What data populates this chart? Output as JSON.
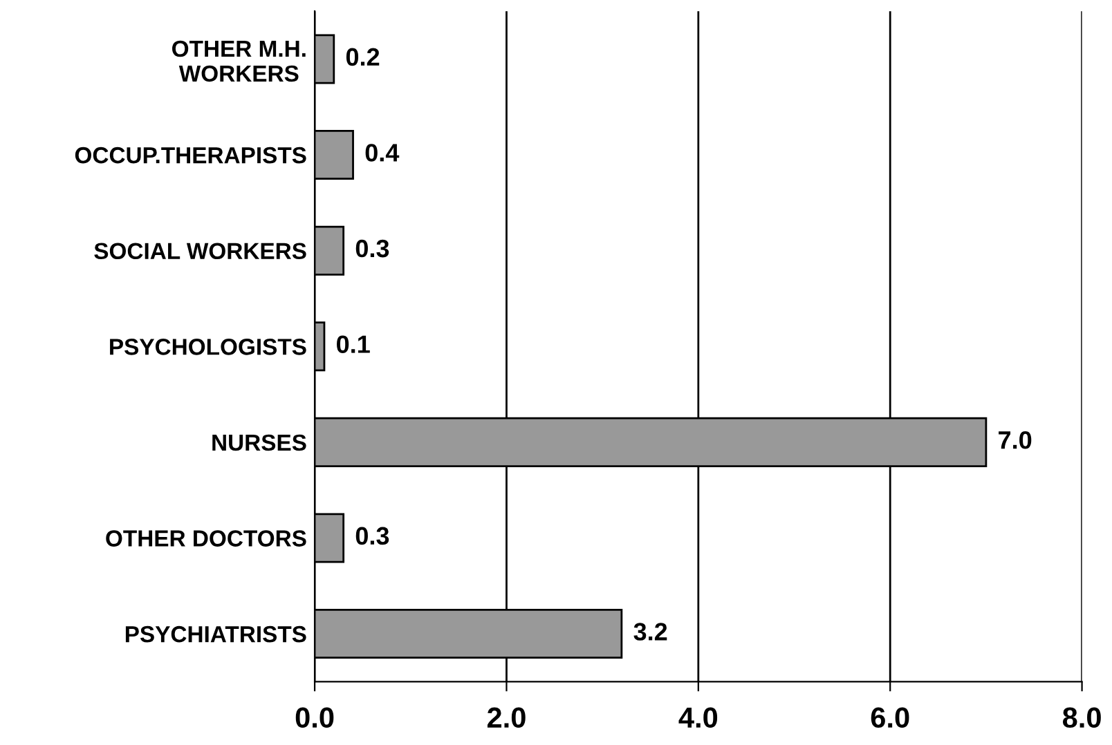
{
  "chart_data": {
    "type": "bar",
    "orientation": "horizontal",
    "categories": [
      "OTHER M.H.\nWORKERS",
      "OCCUP.THERAPISTS",
      "SOCIAL WORKERS",
      "PSYCHOLOGISTS",
      "NURSES",
      "OTHER DOCTORS",
      "PSYCHIATRISTS"
    ],
    "values": [
      0.2,
      0.4,
      0.3,
      0.1,
      7.0,
      0.3,
      3.2
    ],
    "value_labels": [
      "0.2",
      "0.4",
      "0.3",
      "0.1",
      "7.0",
      "0.3",
      "3.2"
    ],
    "color": "#999999",
    "xlim": [
      0,
      8
    ],
    "xticks": [
      {
        "value": 0,
        "label": "0.0"
      },
      {
        "value": 2,
        "label": "2.0"
      },
      {
        "value": 4,
        "label": "4.0"
      },
      {
        "value": 6,
        "label": "6.0"
      },
      {
        "value": 8,
        "label": "8.0"
      }
    ],
    "grid": "x"
  }
}
